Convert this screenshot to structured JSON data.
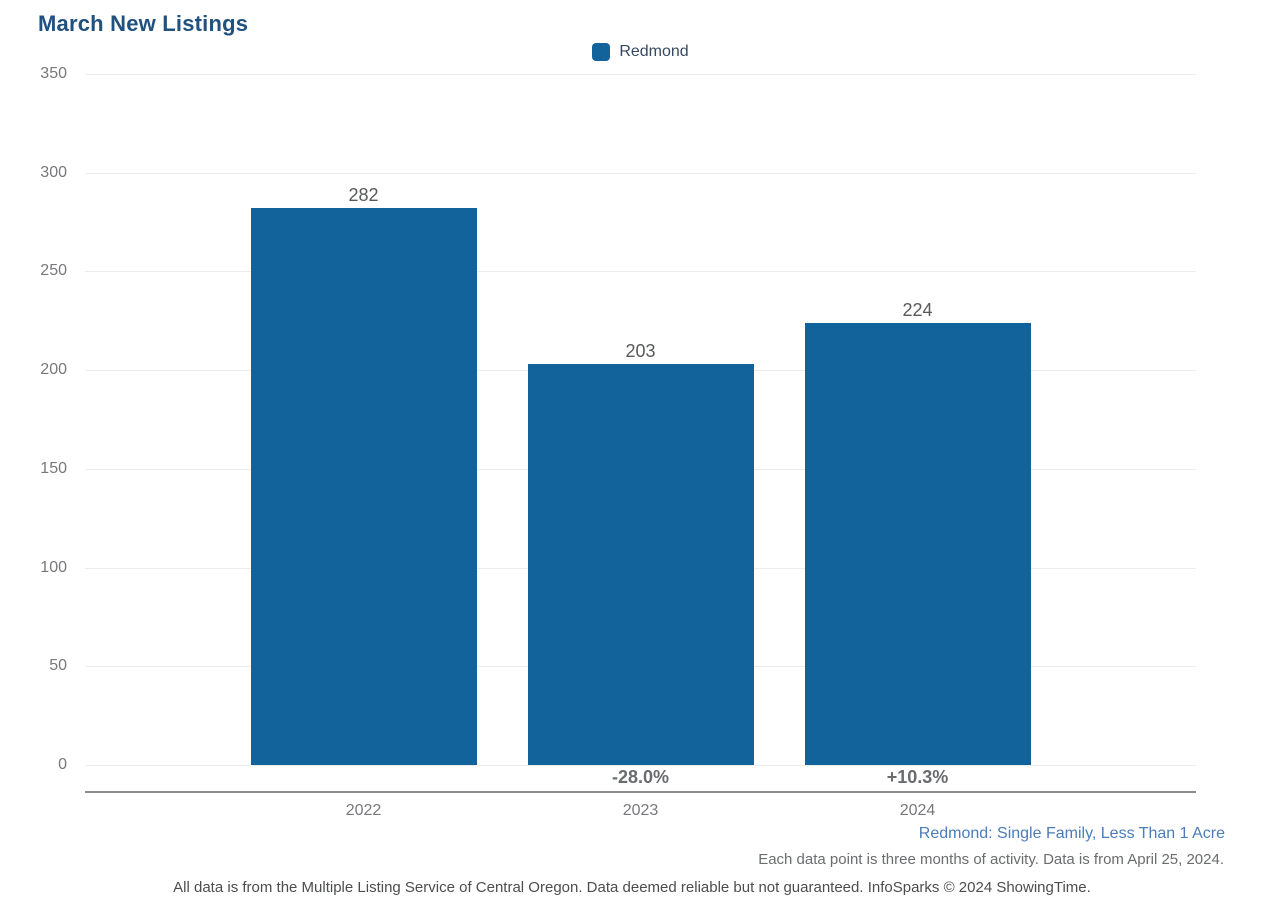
{
  "title": "March New Listings",
  "legend": {
    "label": "Redmond"
  },
  "chart_data": {
    "type": "bar",
    "categories": [
      "2022",
      "2023",
      "2024"
    ],
    "series": [
      {
        "name": "Redmond",
        "values": [
          282,
          203,
          224
        ]
      }
    ],
    "value_labels": [
      "282",
      "203",
      "224"
    ],
    "change_labels": [
      "",
      "-28.0%",
      "+10.3%"
    ],
    "title": "March New Listings",
    "xlabel": "",
    "ylabel": "",
    "ylim": [
      0,
      350
    ],
    "ytick_step": 50,
    "ytick_labels": [
      "350",
      "300",
      "250",
      "200",
      "150",
      "100",
      "50",
      "0"
    ],
    "grid": true,
    "legend_position": "top-center",
    "bar_color": "#12629c"
  },
  "footnotes": {
    "segment": "Redmond: Single Family, Less Than 1 Acre",
    "data_note": "Each data point is three months of activity. Data is from April 25, 2024.",
    "disclaimer": "All data is from the Multiple Listing Service of Central Oregon. Data deemed reliable but not guaranteed. InfoSparks © 2024 ShowingTime."
  }
}
